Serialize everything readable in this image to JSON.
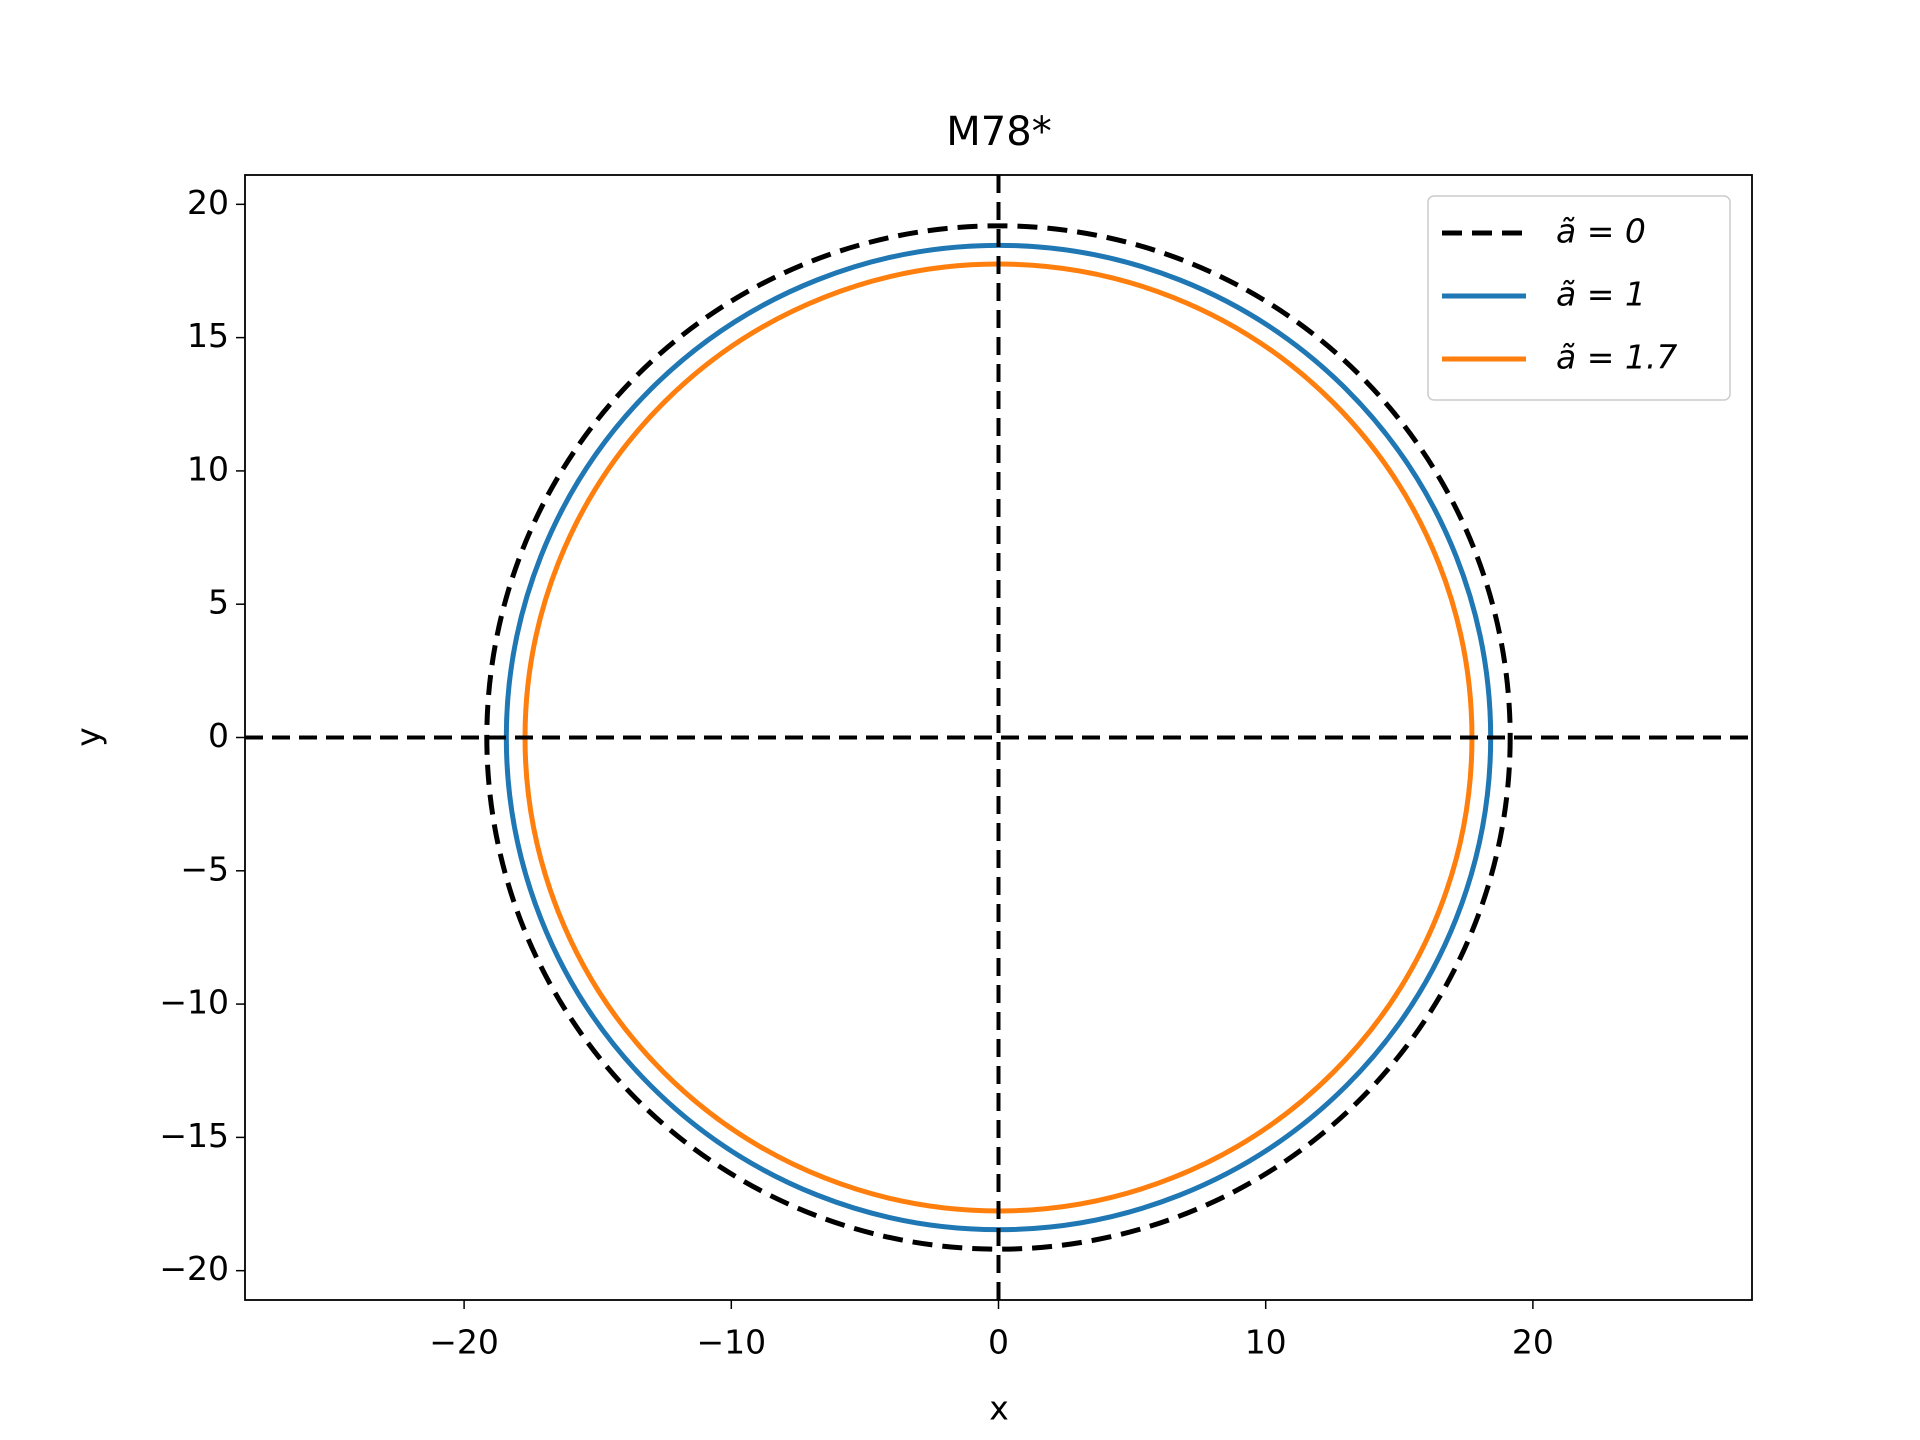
{
  "chart_data": {
    "type": "circle",
    "title": "M78*",
    "x_label": "x",
    "y_label": "y",
    "series": [
      {
        "name": "ã = 0",
        "color": "#000000",
        "dashed": true,
        "radius": 19.15
      },
      {
        "name": "ã = 1",
        "color": "#1f77b4",
        "dashed": false,
        "radius": 18.42
      },
      {
        "name": "ã = 1.7",
        "color": "#ff7f0e",
        "dashed": false,
        "radius": 17.72
      }
    ],
    "zero_lines": true,
    "legend": "upper right",
    "xlim": [
      -28.2,
      28.2
    ],
    "ylim": [
      -21.1,
      21.1
    ],
    "xticks": [
      {
        "value": -20,
        "label": "−20"
      },
      {
        "value": -10,
        "label": "−10"
      },
      0,
      10,
      20
    ],
    "yticks": [
      {
        "value": -20,
        "label": "−20"
      },
      {
        "value": -15,
        "label": "−15"
      },
      {
        "value": -10,
        "label": "−10"
      },
      {
        "value": -5,
        "label": "−5"
      },
      0,
      5,
      10,
      15,
      20
    ]
  }
}
